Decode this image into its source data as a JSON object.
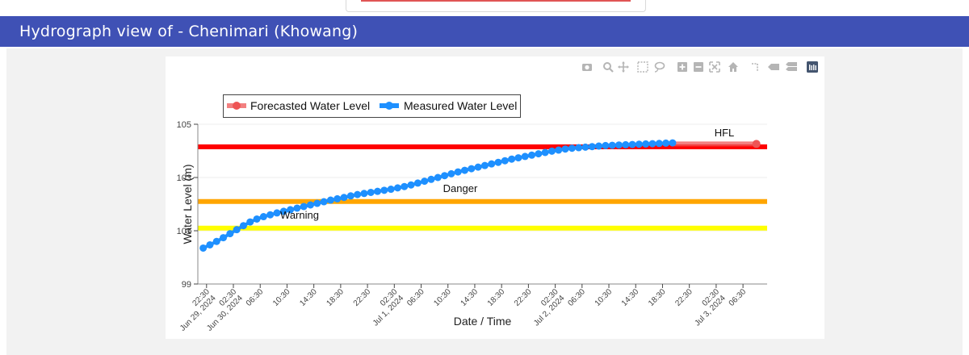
{
  "header": {
    "title": "Hydrograph view of - Chenimari (Khowang)"
  },
  "modebar": {
    "icons": [
      "camera-icon",
      "zoom-icon",
      "pan-icon",
      "box-select-icon",
      "lasso-icon",
      "zoom-in-icon",
      "zoom-out-icon",
      "autoscale-icon",
      "home-icon",
      "spike-lines-icon",
      "hover-closest-icon",
      "hover-compare-icon",
      "plotly-logo-icon"
    ]
  },
  "colors": {
    "header_bg": "#3f51b5",
    "hfl": "#ff0000",
    "danger": "#ffa500",
    "warning": "#ffff00",
    "measured": "#1e90ff",
    "forecast": "#ee5555"
  },
  "chart_data": {
    "type": "line",
    "xlabel": "Date / Time",
    "ylabel": "Water Level (m)",
    "ylim": [
      99,
      105
    ],
    "yticks": [
      99,
      101,
      103,
      105
    ],
    "xticks": [
      {
        "hours": 0,
        "lines": [
          "22:30",
          "Jun 29, 2024"
        ]
      },
      {
        "hours": 4,
        "lines": [
          "02:30",
          "Jun 30, 2024"
        ]
      },
      {
        "hours": 8,
        "lines": [
          "06:30"
        ]
      },
      {
        "hours": 12,
        "lines": [
          "10:30"
        ]
      },
      {
        "hours": 16,
        "lines": [
          "14:30"
        ]
      },
      {
        "hours": 20,
        "lines": [
          "18:30"
        ]
      },
      {
        "hours": 24,
        "lines": [
          "22:30"
        ]
      },
      {
        "hours": 28,
        "lines": [
          "02:30",
          "Jul 1, 2024"
        ]
      },
      {
        "hours": 32,
        "lines": [
          "06:30"
        ]
      },
      {
        "hours": 36,
        "lines": [
          "10:30"
        ]
      },
      {
        "hours": 40,
        "lines": [
          "14:30"
        ]
      },
      {
        "hours": 44,
        "lines": [
          "18:30"
        ]
      },
      {
        "hours": 48,
        "lines": [
          "22:30"
        ]
      },
      {
        "hours": 52,
        "lines": [
          "02:30",
          "Jul 2, 2024"
        ]
      },
      {
        "hours": 56,
        "lines": [
          "06:30"
        ]
      },
      {
        "hours": 60,
        "lines": [
          "10:30"
        ]
      },
      {
        "hours": 64,
        "lines": [
          "14:30"
        ]
      },
      {
        "hours": 68,
        "lines": [
          "18:30"
        ]
      },
      {
        "hours": 72,
        "lines": [
          "22:30"
        ]
      },
      {
        "hours": 76,
        "lines": [
          "02:30",
          "Jul 3, 2024"
        ]
      },
      {
        "hours": 80,
        "lines": [
          "06:30"
        ]
      }
    ],
    "xlim_hours": [
      -1.3,
      83.6
    ],
    "legend": {
      "placement": "top-left",
      "entries": [
        "Forecasted Water Level",
        "Measured Water Level"
      ]
    },
    "thresholds": [
      {
        "name": "HFL",
        "label": "HFL",
        "value": 104.15,
        "color": "#ff0000"
      },
      {
        "name": "Danger",
        "label": "Danger",
        "value": 102.1,
        "color": "#ffa500"
      },
      {
        "name": "Warning",
        "label": "Warning",
        "value": 101.1,
        "color": "#ffff00"
      }
    ],
    "series": [
      {
        "name": "Measured Water Level",
        "color": "#1e90ff",
        "x_hours": [
          -0.5,
          0.5,
          1.5,
          2.5,
          3.5,
          4.5,
          5.5,
          6.5,
          7.5,
          8.5,
          9.5,
          10.5,
          11.5,
          12.5,
          13.5,
          14.5,
          15.5,
          16.5,
          17.5,
          18.5,
          19.5,
          20.5,
          21.5,
          22.5,
          23.5,
          24.5,
          25.5,
          26.5,
          27.5,
          28.5,
          29.5,
          30.5,
          31.5,
          32.5,
          33.5,
          34.5,
          35.5,
          36.5,
          37.5,
          38.5,
          39.5,
          40.5,
          41.5,
          42.5,
          43.5,
          44.5,
          45.5,
          46.5,
          47.5,
          48.5,
          49.5,
          50.5,
          51.5,
          52.5,
          53.5,
          54.5,
          55.5,
          56.5,
          57.5,
          58.5,
          59.5,
          60.5,
          61.5,
          62.5,
          63.5,
          64.5,
          65.5,
          66.5,
          67.5,
          68.5,
          69.5
        ],
        "values": [
          100.35,
          100.47,
          100.6,
          100.74,
          100.89,
          101.04,
          101.19,
          101.33,
          101.44,
          101.53,
          101.6,
          101.67,
          101.73,
          101.79,
          101.85,
          101.91,
          101.97,
          102.03,
          102.09,
          102.15,
          102.2,
          102.25,
          102.31,
          102.36,
          102.4,
          102.44,
          102.48,
          102.52,
          102.56,
          102.61,
          102.66,
          102.72,
          102.79,
          102.86,
          102.93,
          103.0,
          103.07,
          103.14,
          103.21,
          103.27,
          103.33,
          103.39,
          103.45,
          103.51,
          103.57,
          103.63,
          103.69,
          103.74,
          103.79,
          103.84,
          103.89,
          103.94,
          103.99,
          104.03,
          104.07,
          104.1,
          104.12,
          104.14,
          104.16,
          104.18,
          104.2,
          104.21,
          104.22,
          104.23,
          104.24,
          104.25,
          104.26,
          104.27,
          104.28,
          104.29,
          104.3
        ]
      },
      {
        "name": "Forecasted Water Level",
        "color": "#ee5555",
        "x_hours": [
          69.5,
          82.0
        ],
        "values": [
          104.26,
          104.26
        ]
      }
    ]
  }
}
